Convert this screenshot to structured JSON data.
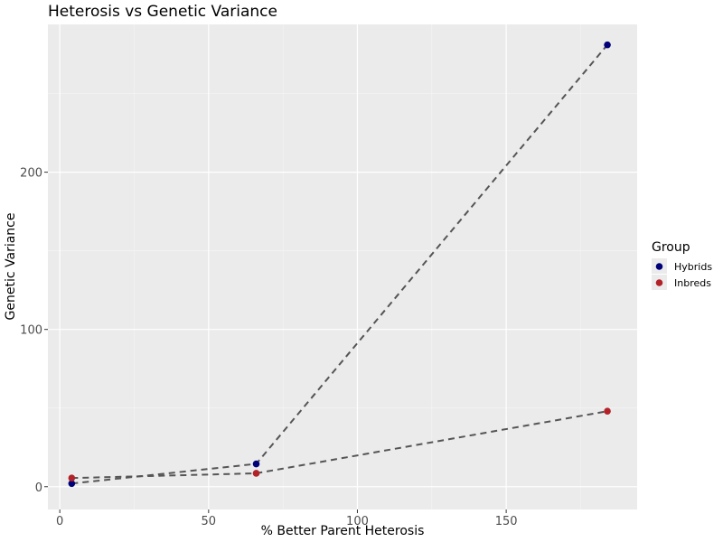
{
  "chart_data": {
    "type": "line",
    "title": "Heterosis vs Genetic Variance",
    "xlabel": "% Better Parent Heterosis",
    "ylabel": "Genetic Variance",
    "xlim": [
      -4,
      194
    ],
    "ylim": [
      -14.5,
      294
    ],
    "xticks": [
      0,
      50,
      100,
      150
    ],
    "xtick_labels": [
      "0",
      "50",
      "100",
      "150"
    ],
    "yticks": [
      0,
      100,
      200
    ],
    "ytick_labels": [
      "0",
      "100",
      "200"
    ],
    "grid": true,
    "line_style": "dashed",
    "line_color": "#555555",
    "background_color": "#ebebeb",
    "legend": {
      "title": "Group",
      "position": "right",
      "entries": [
        "Hybrids",
        "Inbreds"
      ]
    },
    "series": [
      {
        "name": "Hybrids",
        "color": "#00007a",
        "x": [
          4,
          66,
          184
        ],
        "y": [
          2,
          14.5,
          281
        ]
      },
      {
        "name": "Inbreds",
        "color": "#b22228",
        "x": [
          4,
          66,
          184
        ],
        "y": [
          5.5,
          8.5,
          48
        ]
      }
    ]
  }
}
